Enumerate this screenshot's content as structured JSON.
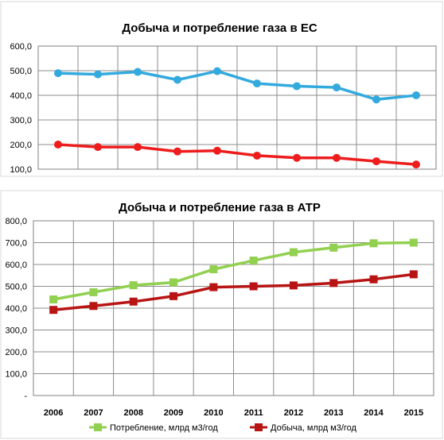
{
  "chart_data": [
    {
      "type": "line",
      "title": "Добыча и потребление газа в ЕС",
      "xlabel": "",
      "ylabel": "",
      "x": [
        "2006",
        "2007",
        "2008",
        "2009",
        "2010",
        "2011",
        "2012",
        "2013",
        "2014",
        "2015"
      ],
      "ylim": [
        100,
        600
      ],
      "y_ticks": [
        "100,0",
        "200,0",
        "300,0",
        "400,0",
        "500,0",
        "600,0"
      ],
      "y_tick_values": [
        100,
        200,
        300,
        400,
        500,
        600
      ],
      "show_x_tick_labels": false,
      "grid": true,
      "legend": "none",
      "series": [
        {
          "color": "#33aadd",
          "marker": "circle",
          "values": [
            490,
            485,
            495,
            463,
            498,
            448,
            437,
            432,
            383,
            400
          ]
        },
        {
          "color": "#ee1c1c",
          "marker": "circle",
          "values": [
            200,
            190,
            190,
            172,
            175,
            155,
            146,
            146,
            132,
            119
          ]
        }
      ]
    },
    {
      "type": "line",
      "title": "Добыча и потребление газа в АТР",
      "xlabel": "",
      "ylabel": "",
      "x": [
        "2006",
        "2007",
        "2008",
        "2009",
        "2010",
        "2011",
        "2012",
        "2013",
        "2014",
        "2015"
      ],
      "ylim": [
        0,
        800
      ],
      "y_ticks": [
        "-",
        "100,0",
        "200,0",
        "300,0",
        "400,0",
        "500,0",
        "600,0",
        "700,0",
        "800,0"
      ],
      "y_tick_values": [
        0,
        100,
        200,
        300,
        400,
        500,
        600,
        700,
        800
      ],
      "show_x_tick_labels": true,
      "grid": true,
      "legend": "bottom",
      "series": [
        {
          "name": "Потребление, млрд м3/год",
          "color": "#92d050",
          "marker": "square",
          "values": [
            440,
            473,
            505,
            518,
            578,
            618,
            656,
            677,
            697,
            700
          ]
        },
        {
          "name": "Добыча, млрд м3/год",
          "color": "#b81414",
          "marker": "square",
          "values": [
            392,
            410,
            430,
            455,
            496,
            500,
            504,
            515,
            532,
            555
          ]
        }
      ]
    }
  ]
}
